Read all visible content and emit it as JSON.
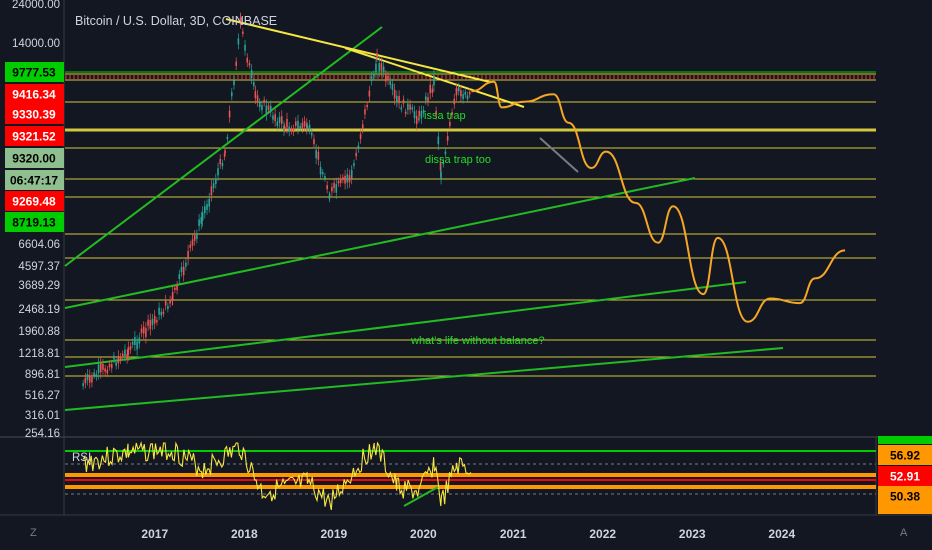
{
  "chart_data": [
    {
      "type": "line",
      "title": "Bitcoin / U.S. Dollar, 3D, COINBASE",
      "scale": "log",
      "ylim": [
        254.16,
        24000
      ],
      "price_axis_labels": [
        "24000.00",
        "14000.00",
        "6604.06",
        "4597.37",
        "3689.29",
        "2468.19",
        "1960.88",
        "1218.81",
        "896.81",
        "516.27",
        "316.01",
        "254.16"
      ],
      "price_badges": [
        {
          "label": "9777.53",
          "bg": "#00cc00",
          "fg": "#000000"
        },
        {
          "label": "9416.34",
          "bg": "#ff0000",
          "fg": "#ffffff"
        },
        {
          "label": "9330.39",
          "bg": "#ff0000",
          "fg": "#ffffff"
        },
        {
          "label": "9321.52",
          "bg": "#ff0000",
          "fg": "#ffffff"
        },
        {
          "label": "9320.00",
          "bg": "#8fbf8f",
          "fg": "#000000"
        },
        {
          "label": "06:47:17",
          "bg": "#8fbf8f",
          "fg": "#000000"
        },
        {
          "label": "9269.48",
          "bg": "#ff0000",
          "fg": "#ffffff"
        },
        {
          "label": "8719.13",
          "bg": "#00cc00",
          "fg": "#000000"
        }
      ],
      "time_axis": [
        "2017",
        "2018",
        "2019",
        "2020",
        "2021",
        "2022",
        "2023",
        "2024"
      ],
      "annotations": [
        "issa trap",
        "dissa trap too",
        "what's life without balance?"
      ],
      "series": [
        {
          "name": "",
          "color": "#26a69a",
          "x": [
            "2016-03",
            "2016-09",
            "2017-03",
            "2017-07",
            "2017-10",
            "2017-12-17",
            "2018-02",
            "2018-06",
            "2018-09",
            "2018-12-15",
            "2019-03",
            "2019-06-26",
            "2019-09",
            "2019-12",
            "2020-02-13",
            "2020-03-13",
            "2020-05",
            "2020-07"
          ],
          "values": [
            420,
            600,
            1050,
            2500,
            5000,
            19500,
            9000,
            6500,
            6600,
            3200,
            3900,
            13500,
            8500,
            7200,
            10400,
            4000,
            9300,
            9300
          ]
        },
        {
          "name": "",
          "color": "#f5a623",
          "x": [
            "2020-07",
            "2020-10",
            "2020-11",
            "2021-02",
            "2021-06",
            "2021-08",
            "2021-11",
            "2022-01",
            "2022-05",
            "2022-08",
            "2022-10",
            "2023-02",
            "2023-04",
            "2023-08",
            "2023-11",
            "2024-03",
            "2024-05",
            "2024-09"
          ],
          "values": [
            9500,
            10500,
            8000,
            8500,
            9200,
            6800,
            4200,
            5000,
            2900,
            1900,
            2800,
            1100,
            2000,
            820,
            1050,
            1000,
            1300,
            1750
          ]
        }
      ]
    },
    {
      "type": "line",
      "title": "RSI",
      "ylim": [
        25,
        75
      ],
      "value_badges": [
        {
          "label": "56.92",
          "bg": "#ff9800",
          "fg": "#000000"
        },
        {
          "label": "52.91",
          "bg": "#ff0000",
          "fg": "#ffffff"
        },
        {
          "label": "50.38",
          "bg": "#ff9800",
          "fg": "#000000"
        }
      ],
      "series": [
        {
          "name": "RSI",
          "color": "#f5e642",
          "x": [
            "2016-03",
            "2016-09",
            "2017-03",
            "2017-07",
            "2017-12",
            "2018-03",
            "2018-09",
            "2018-12",
            "2019-03",
            "2019-06",
            "2019-09",
            "2019-12",
            "2020-02",
            "2020-03",
            "2020-05",
            "2020-07"
          ],
          "values": [
            60,
            68,
            70,
            55,
            72,
            38,
            45,
            30,
            52,
            74,
            42,
            38,
            60,
            30,
            58,
            55
          ]
        }
      ]
    }
  ],
  "corner": {
    "left": "Z",
    "right": "A"
  }
}
